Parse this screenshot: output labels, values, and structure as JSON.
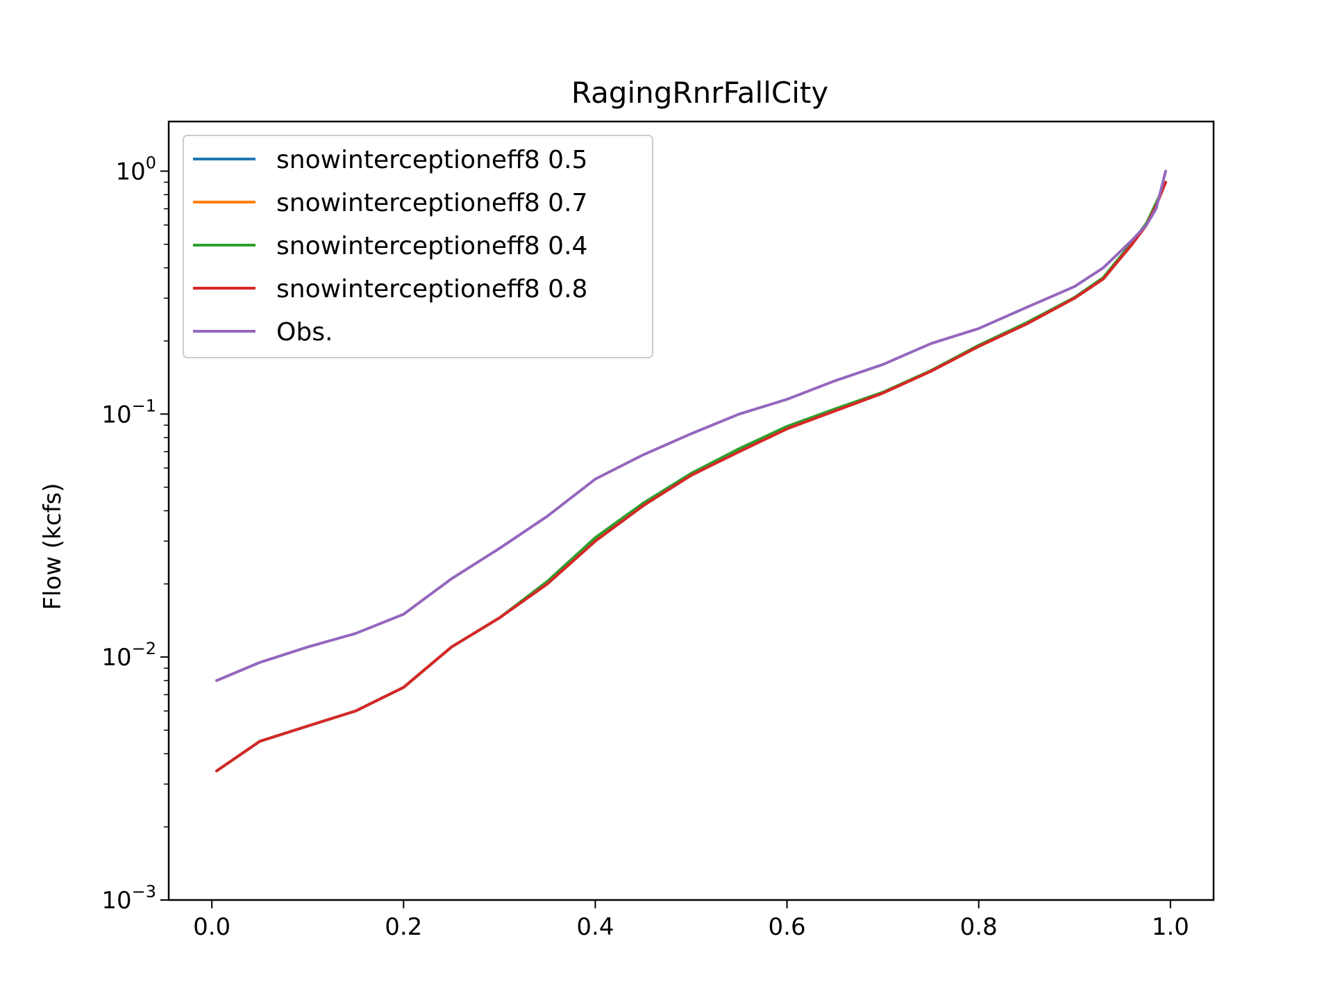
{
  "chart_data": {
    "type": "line",
    "title": "RagingRnrFallCity",
    "xlabel": "",
    "ylabel": "Flow (kcfs)",
    "xlim": [
      -0.045,
      1.045
    ],
    "ylim": [
      0.001,
      1.6
    ],
    "yscale": "log",
    "grid": false,
    "legend_position": "upper-left",
    "x_ticks": [
      {
        "value": 0.0,
        "label": "0.0"
      },
      {
        "value": 0.2,
        "label": "0.2"
      },
      {
        "value": 0.4,
        "label": "0.4"
      },
      {
        "value": 0.6,
        "label": "0.6"
      },
      {
        "value": 0.8,
        "label": "0.8"
      },
      {
        "value": 1.0,
        "label": "1.0"
      }
    ],
    "y_ticks": [
      {
        "value": 0.001,
        "base": "10",
        "exp": "−3"
      },
      {
        "value": 0.01,
        "base": "10",
        "exp": "−2"
      },
      {
        "value": 0.1,
        "base": "10",
        "exp": "−1"
      },
      {
        "value": 1,
        "base": "10",
        "exp": "0"
      }
    ],
    "x": [
      0.005,
      0.05,
      0.1,
      0.15,
      0.2,
      0.25,
      0.3,
      0.35,
      0.4,
      0.45,
      0.5,
      0.55,
      0.6,
      0.65,
      0.7,
      0.75,
      0.8,
      0.85,
      0.9,
      0.93,
      0.96,
      0.975,
      0.985,
      0.995
    ],
    "series": [
      {
        "name": "snowinterceptioneff8 0.5",
        "color": "#1f77b4",
        "values": [
          0.0034,
          0.0045,
          0.0052,
          0.006,
          0.0075,
          0.011,
          0.0145,
          0.02,
          0.03,
          0.042,
          0.056,
          0.07,
          0.087,
          0.103,
          0.122,
          0.15,
          0.19,
          0.235,
          0.3,
          0.36,
          0.5,
          0.6,
          0.72,
          0.9
        ]
      },
      {
        "name": "snowinterceptioneff8 0.7",
        "color": "#ff7f0e",
        "values": [
          0.0034,
          0.0045,
          0.0052,
          0.006,
          0.0075,
          0.011,
          0.0145,
          0.02,
          0.03,
          0.042,
          0.056,
          0.07,
          0.087,
          0.103,
          0.122,
          0.15,
          0.19,
          0.235,
          0.3,
          0.36,
          0.5,
          0.6,
          0.72,
          0.9
        ]
      },
      {
        "name": "snowinterceptioneff8 0.4",
        "color": "#2ca02c",
        "values": [
          0.0034,
          0.0045,
          0.0052,
          0.006,
          0.0075,
          0.011,
          0.0145,
          0.0205,
          0.031,
          0.043,
          0.057,
          0.072,
          0.089,
          0.105,
          0.123,
          0.151,
          0.192,
          0.238,
          0.302,
          0.365,
          0.51,
          0.61,
          0.74,
          0.9
        ]
      },
      {
        "name": "snowinterceptioneff8 0.8",
        "color": "#d62728",
        "values": [
          0.0034,
          0.0045,
          0.0052,
          0.006,
          0.0075,
          0.011,
          0.0145,
          0.02,
          0.03,
          0.042,
          0.056,
          0.07,
          0.087,
          0.103,
          0.122,
          0.15,
          0.19,
          0.235,
          0.3,
          0.36,
          0.5,
          0.6,
          0.72,
          0.9
        ]
      },
      {
        "name": "Obs.",
        "color": "#9467bd",
        "values": [
          0.008,
          0.0095,
          0.011,
          0.0125,
          0.015,
          0.021,
          0.028,
          0.038,
          0.054,
          0.068,
          0.083,
          0.1,
          0.115,
          0.137,
          0.16,
          0.195,
          0.225,
          0.275,
          0.335,
          0.4,
          0.52,
          0.6,
          0.7,
          1.0
        ]
      }
    ]
  }
}
